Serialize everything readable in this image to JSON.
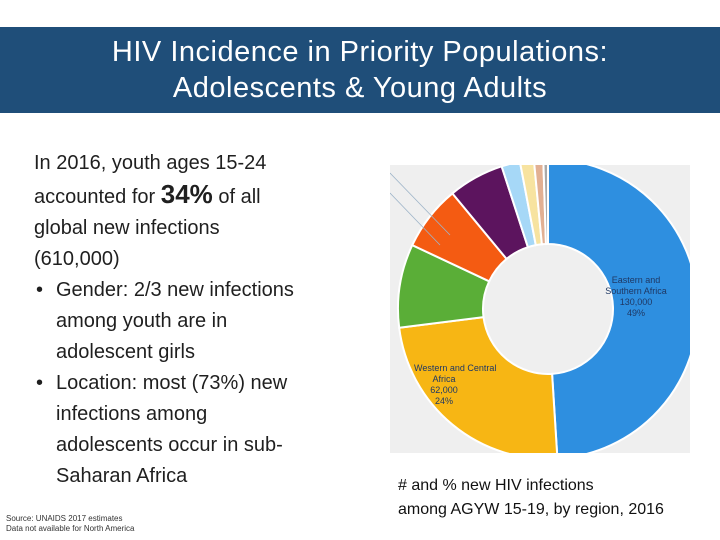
{
  "header": {
    "title_line1": "HIV Incidence in Priority Populations:",
    "title_line2": "Adolescents & Young Adults"
  },
  "main_text": {
    "line1": "In 2016, youth ages 15-24",
    "line2_pre": "accounted for ",
    "line2_big": "34%",
    "line2_post": " of all",
    "line3": "global new infections",
    "line4": "(610,000)",
    "bullets": [
      {
        "lines": [
          "Gender: 2/3 new infections",
          "among youth are in",
          "adolescent girls"
        ]
      },
      {
        "lines": [
          "Location: most (73%) new",
          "infections among",
          "adolescents occur in sub-",
          "Saharan Africa"
        ]
      }
    ]
  },
  "source": {
    "line1": "Source: UNAIDS 2017 estimates",
    "line2": "Data not available for North America"
  },
  "chart_data": {
    "type": "pie",
    "title": "",
    "series": [
      {
        "name": "Eastern and Southern Africa",
        "value": 130000,
        "percent": 49,
        "color": "#2e8fe0"
      },
      {
        "name": "Western and Central Africa",
        "value": 62000,
        "percent": 24,
        "color": "#f7b614"
      },
      {
        "name": "",
        "percent": 9,
        "color": "#5aae37"
      },
      {
        "name": "",
        "percent": 7,
        "color": "#f45b12"
      },
      {
        "name": "",
        "percent": 6,
        "color": "#5c145e"
      },
      {
        "name": "",
        "percent": 2,
        "color": "#a6d8f7"
      },
      {
        "name": "",
        "percent": 1.5,
        "color": "#f7e3a0"
      },
      {
        "name": "",
        "percent": 1,
        "color": "#e2b093"
      },
      {
        "name": "",
        "percent": 0.5,
        "color": "#a9a9a9"
      }
    ],
    "labels": {
      "esa_name_1": "Eastern and",
      "esa_name_2": "Southern Africa",
      "esa_value": "130,000",
      "esa_percent": "49%",
      "wca_name_1": "Western and Central",
      "wca_name_2": "Africa",
      "wca_value": "62,000",
      "wca_percent": "24%"
    }
  },
  "caption": {
    "line1": "# and % new HIV infections",
    "line2": "among AGYW 15-19, by region, 2016"
  }
}
